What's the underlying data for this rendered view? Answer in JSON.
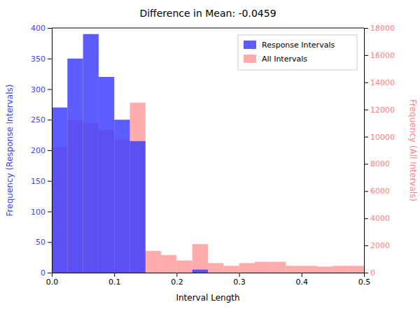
{
  "chart_data": {
    "type": "histogram",
    "title": "Difference in Mean: -0.0459",
    "xlabel": "Interval Length",
    "ylabel": "Frequency (Response Intervals)",
    "y2label": "Frequency (All Intervals)",
    "bins": [
      0.0,
      0.025,
      0.05,
      0.075,
      0.1,
      0.125,
      0.15,
      0.175,
      0.2,
      0.225,
      0.25,
      0.275,
      0.3,
      0.325,
      0.35,
      0.375,
      0.4,
      0.425,
      0.45,
      0.475,
      0.5
    ],
    "series": [
      {
        "name": "Response Intervals",
        "color": "#4040ff",
        "values": [
          270,
          350,
          390,
          320,
          250,
          215,
          0,
          0,
          0,
          5,
          0,
          0,
          0,
          0,
          0,
          0,
          0,
          0,
          0,
          0
        ]
      },
      {
        "name": "All Intervals",
        "color": "#ff8080",
        "axis": "y2",
        "values": [
          9200,
          11200,
          11000,
          10500,
          9800,
          12500,
          1600,
          1300,
          900,
          2100,
          700,
          500,
          700,
          800,
          800,
          500,
          500,
          450,
          500,
          500
        ]
      }
    ],
    "xlim": [
      0,
      0.5
    ],
    "xticks": [
      {
        "value": 0,
        "label": "0.0"
      },
      0.1,
      0.2,
      0.3,
      0.4,
      0.5
    ],
    "ylim": [
      0,
      400
    ],
    "yticks": [
      0,
      50,
      100,
      150,
      200,
      250,
      300,
      350,
      400
    ],
    "y2lim": [
      0,
      18000
    ],
    "y2ticks": [
      0,
      2000,
      4000,
      6000,
      8000,
      10000,
      12000,
      14000,
      16000,
      18000
    ],
    "legend": "top-right",
    "grid": false
  }
}
